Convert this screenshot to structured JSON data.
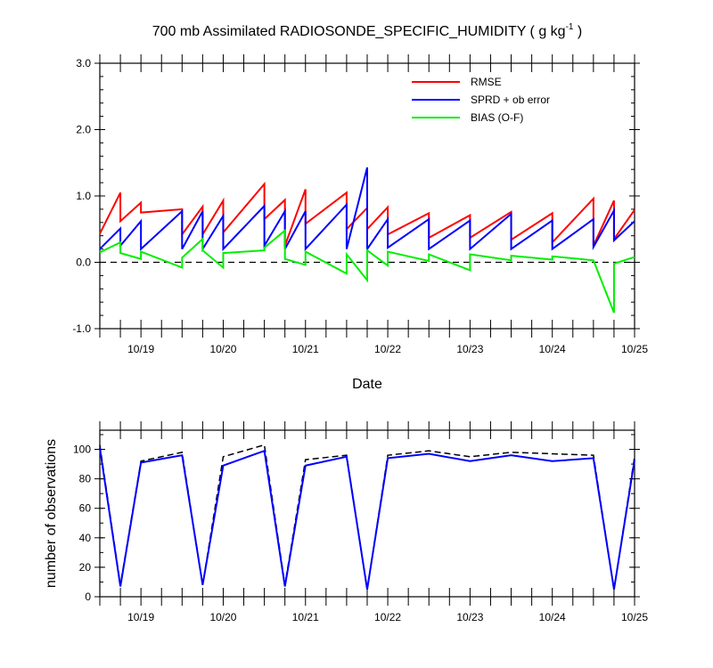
{
  "chart_data": [
    {
      "type": "line",
      "title": "700 mb Assimilated RADIOSONDE_SPECIFIC_HUMIDITY ( g kg",
      "title_superscript": "-1",
      "title_suffix": " )",
      "xlabel": "Date",
      "ylabel": "",
      "xlim": [
        -0.5,
        6.0
      ],
      "ylim": [
        -1.0,
        3.0
      ],
      "x_ticks": [
        {
          "x": 0.0,
          "label": "10/19"
        },
        {
          "x": 1.0,
          "label": "10/20"
        },
        {
          "x": 2.0,
          "label": "10/21"
        },
        {
          "x": 3.0,
          "label": "10/22"
        },
        {
          "x": 4.0,
          "label": "10/23"
        },
        {
          "x": 5.0,
          "label": "10/24"
        },
        {
          "x": 6.0,
          "label": "10/25"
        }
      ],
      "y_ticks": [
        {
          "v": -1.0,
          "label": "-1.0"
        },
        {
          "v": 0.0,
          "label": "0.0"
        },
        {
          "v": 1.0,
          "label": "1.0"
        },
        {
          "v": 2.0,
          "label": "2.0"
        },
        {
          "v": 3.0,
          "label": "3.0"
        }
      ],
      "zero_line": true,
      "legend_position": "top-right",
      "series": [
        {
          "name": "RMSE",
          "color": "#ff0000",
          "points": [
            [
              -0.5,
              0.43
            ],
            [
              -0.25,
              1.05
            ],
            [
              -0.25,
              0.62
            ],
            [
              0.0,
              0.9
            ],
            [
              0.0,
              0.75
            ],
            [
              0.5,
              0.8
            ],
            [
              0.5,
              0.42
            ],
            [
              0.75,
              0.84
            ],
            [
              0.75,
              0.42
            ],
            [
              1.0,
              0.93
            ],
            [
              1.0,
              0.45
            ],
            [
              1.5,
              1.18
            ],
            [
              1.5,
              0.65
            ],
            [
              1.75,
              0.94
            ],
            [
              1.75,
              0.25
            ],
            [
              2.0,
              1.1
            ],
            [
              2.0,
              0.58
            ],
            [
              2.5,
              1.05
            ],
            [
              2.5,
              0.5
            ],
            [
              2.75,
              0.82
            ],
            [
              2.75,
              0.5
            ],
            [
              3.0,
              0.83
            ],
            [
              3.0,
              0.42
            ],
            [
              3.5,
              0.74
            ],
            [
              3.5,
              0.37
            ],
            [
              4.0,
              0.71
            ],
            [
              4.0,
              0.37
            ],
            [
              4.5,
              0.76
            ],
            [
              4.5,
              0.34
            ],
            [
              5.0,
              0.74
            ],
            [
              5.0,
              0.3
            ],
            [
              5.5,
              0.96
            ],
            [
              5.5,
              0.25
            ],
            [
              5.75,
              0.93
            ],
            [
              5.75,
              0.35
            ],
            [
              6.0,
              0.79
            ]
          ]
        },
        {
          "name": "SPRD + ob error",
          "color": "#0000ff",
          "points": [
            [
              -0.5,
              0.2
            ],
            [
              -0.25,
              0.51
            ],
            [
              -0.25,
              0.25
            ],
            [
              0.0,
              0.62
            ],
            [
              0.0,
              0.2
            ],
            [
              0.5,
              0.77
            ],
            [
              0.5,
              0.2
            ],
            [
              0.75,
              0.77
            ],
            [
              0.75,
              0.2
            ],
            [
              1.0,
              0.7
            ],
            [
              1.0,
              0.2
            ],
            [
              1.5,
              0.85
            ],
            [
              1.5,
              0.25
            ],
            [
              1.75,
              0.77
            ],
            [
              1.75,
              0.2
            ],
            [
              2.0,
              0.77
            ],
            [
              2.0,
              0.2
            ],
            [
              2.5,
              0.87
            ],
            [
              2.5,
              0.2
            ],
            [
              2.75,
              1.43
            ],
            [
              2.75,
              0.2
            ],
            [
              3.0,
              0.65
            ],
            [
              3.0,
              0.22
            ],
            [
              3.5,
              0.65
            ],
            [
              3.5,
              0.2
            ],
            [
              4.0,
              0.63
            ],
            [
              4.0,
              0.2
            ],
            [
              4.5,
              0.73
            ],
            [
              4.5,
              0.2
            ],
            [
              5.0,
              0.63
            ],
            [
              5.0,
              0.2
            ],
            [
              5.5,
              0.65
            ],
            [
              5.5,
              0.23
            ],
            [
              5.75,
              0.78
            ],
            [
              5.75,
              0.33
            ],
            [
              6.0,
              0.62
            ]
          ]
        },
        {
          "name": "BIAS (O-F)",
          "color": "#00ee00",
          "points": [
            [
              -0.5,
              0.15
            ],
            [
              -0.25,
              0.3
            ],
            [
              -0.25,
              0.14
            ],
            [
              0.0,
              0.05
            ],
            [
              0.0,
              0.16
            ],
            [
              0.5,
              -0.08
            ],
            [
              0.5,
              0.07
            ],
            [
              0.75,
              0.35
            ],
            [
              0.75,
              0.18
            ],
            [
              1.0,
              -0.08
            ],
            [
              1.0,
              0.14
            ],
            [
              1.5,
              0.18
            ],
            [
              1.5,
              0.22
            ],
            [
              1.75,
              0.48
            ],
            [
              1.75,
              0.05
            ],
            [
              2.0,
              -0.04
            ],
            [
              2.0,
              0.16
            ],
            [
              2.5,
              -0.17
            ],
            [
              2.5,
              0.12
            ],
            [
              2.75,
              -0.27
            ],
            [
              2.75,
              0.18
            ],
            [
              3.0,
              -0.05
            ],
            [
              3.0,
              0.16
            ],
            [
              3.5,
              0.02
            ],
            [
              3.5,
              0.12
            ],
            [
              4.0,
              -0.12
            ],
            [
              4.0,
              0.12
            ],
            [
              4.5,
              0.03
            ],
            [
              4.5,
              0.1
            ],
            [
              5.0,
              0.04
            ],
            [
              5.0,
              0.09
            ],
            [
              5.5,
              0.03
            ],
            [
              5.5,
              0.03
            ],
            [
              5.75,
              -0.76
            ],
            [
              5.75,
              -0.02
            ],
            [
              6.0,
              0.08
            ]
          ]
        }
      ]
    },
    {
      "type": "line",
      "title": "",
      "xlabel": "",
      "ylabel": "number of observations",
      "xlim": [
        -0.5,
        6.0
      ],
      "ylim": [
        0,
        113
      ],
      "x_ticks": [
        {
          "x": 0.0,
          "label": "10/19"
        },
        {
          "x": 1.0,
          "label": "10/20"
        },
        {
          "x": 2.0,
          "label": "10/21"
        },
        {
          "x": 3.0,
          "label": "10/22"
        },
        {
          "x": 4.0,
          "label": "10/23"
        },
        {
          "x": 5.0,
          "label": "10/24"
        },
        {
          "x": 6.0,
          "label": "10/25"
        }
      ],
      "y_ticks": [
        {
          "v": 0,
          "label": "0"
        },
        {
          "v": 20,
          "label": "20"
        },
        {
          "v": 40,
          "label": "40"
        },
        {
          "v": 60,
          "label": "60"
        },
        {
          "v": 80,
          "label": "80"
        },
        {
          "v": 100,
          "label": "100"
        }
      ],
      "series": [
        {
          "color": "#000000",
          "dash": true,
          "x": [
            -0.5,
            -0.25,
            0.0,
            0.5,
            0.75,
            1.0,
            1.5,
            1.75,
            2.0,
            2.5,
            2.75,
            3.0,
            3.5,
            4.0,
            4.5,
            5.0,
            5.5,
            5.75,
            6.0
          ],
          "values": [
            103,
            8,
            92,
            98,
            8,
            95,
            103,
            8,
            93,
            96,
            5,
            96,
            99,
            95,
            98,
            97,
            96,
            5,
            95
          ]
        },
        {
          "color": "#0000ff",
          "dash": false,
          "x": [
            -0.5,
            -0.25,
            0.0,
            0.5,
            0.75,
            1.0,
            1.5,
            1.75,
            2.0,
            2.5,
            2.75,
            3.0,
            3.5,
            4.0,
            4.5,
            5.0,
            5.5,
            5.75,
            6.0
          ],
          "values": [
            101,
            7,
            91,
            96,
            8,
            89,
            99,
            7,
            89,
            95,
            5,
            94,
            97,
            92,
            96,
            92,
            94,
            5,
            93
          ]
        }
      ]
    }
  ]
}
